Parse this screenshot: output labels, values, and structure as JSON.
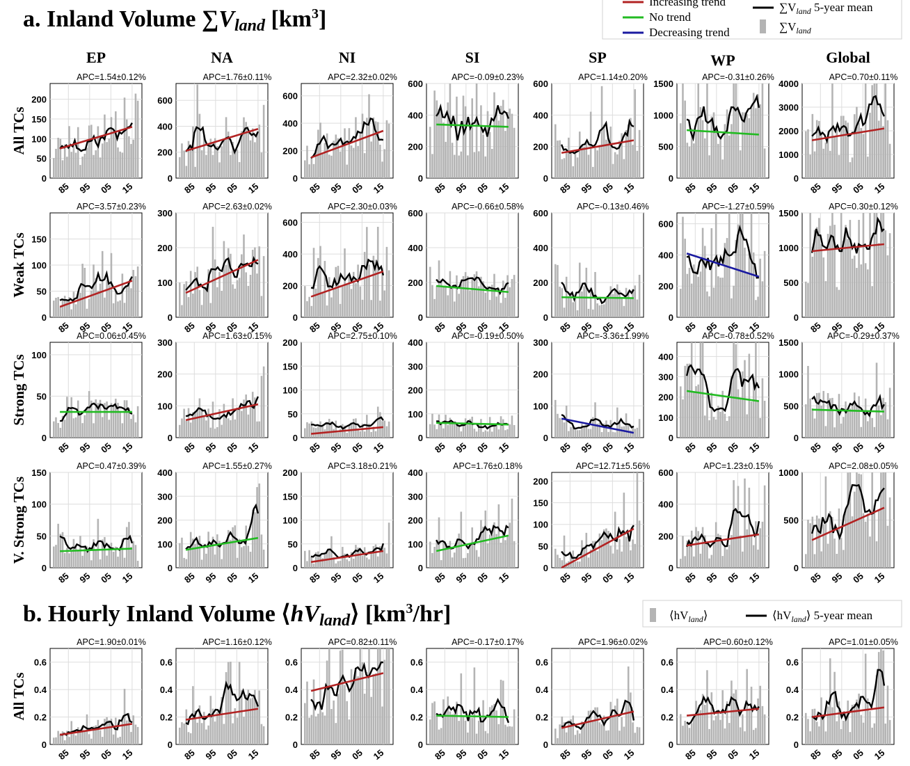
{
  "section_a": {
    "title_prefix": "a. Inland Volume ",
    "title_sum": "∑",
    "title_var": "V",
    "title_sub": "land",
    "title_unit": " [km",
    "title_unit_sup": "3",
    "title_unit_end": "]"
  },
  "section_b": {
    "title_prefix": "b. Hourly Inland Volume ⟨",
    "title_var": "hV",
    "title_sub": "land",
    "title_mid": "⟩ [km",
    "title_unit_sup": "3",
    "title_unit_end": "/hr]"
  },
  "legend_a": {
    "items": [
      {
        "label": "Increasing trend",
        "kind": "line",
        "color": "#b22222"
      },
      {
        "label": "No trend",
        "kind": "line",
        "color": "#22bb22"
      },
      {
        "label": "Decreasing trend",
        "kind": "line",
        "color": "#1a1aa0"
      },
      {
        "label": "∑V",
        "sub": "land",
        "suffix": " 5-year mean",
        "kind": "line",
        "color": "#000000"
      },
      {
        "label": "∑V",
        "sub": "land",
        "suffix": "",
        "kind": "bar",
        "color": "#b4b4b4"
      }
    ]
  },
  "legend_b": {
    "items": [
      {
        "label": "⟨hV",
        "sub": "land",
        "suffix": "⟩",
        "kind": "bar",
        "color": "#b4b4b4"
      },
      {
        "label": "⟨hV",
        "sub": "land",
        "suffix": "⟩ 5-year mean",
        "kind": "line",
        "color": "#000000"
      }
    ]
  },
  "columns": [
    "EP",
    "NA",
    "NI",
    "SI",
    "SP",
    "WP",
    "Global"
  ],
  "rows_a": [
    "All TCs",
    "Weak TCs",
    "Strong TCs",
    "V. Strong TCs"
  ],
  "rows_b": [
    "All TCs"
  ],
  "x_ticks": [
    "85",
    "95",
    "05",
    "15"
  ],
  "colors": {
    "bar": "#b4b4b4",
    "mean": "#000000",
    "increasing": "#b22222",
    "none": "#22bb22",
    "decreasing": "#1a1aa0",
    "grid": "#dddddd"
  },
  "chart_data": [
    {
      "section": "a",
      "row": "All TCs",
      "region": "EP",
      "type": "bar",
      "apc": "APC=1.54±0.12%",
      "ylim": [
        0,
        240
      ],
      "yticks": [
        0,
        50,
        100,
        150,
        200
      ],
      "trend": "increasing",
      "trend_line": [
        75,
        130
      ]
    },
    {
      "section": "a",
      "row": "All TCs",
      "region": "NA",
      "type": "bar",
      "apc": "APC=1.76±0.11%",
      "ylim": [
        0,
        730
      ],
      "yticks": [
        0,
        200,
        400,
        600
      ],
      "trend": "increasing",
      "trend_line": [
        210,
        380
      ]
    },
    {
      "section": "a",
      "row": "All TCs",
      "region": "NI",
      "type": "bar",
      "apc": "APC=2.32±0.02%",
      "ylim": [
        0,
        690
      ],
      "yticks": [
        0,
        200,
        400,
        600
      ],
      "trend": "increasing",
      "trend_line": [
        150,
        345
      ]
    },
    {
      "section": "a",
      "row": "All TCs",
      "region": "SI",
      "type": "bar",
      "apc": "APC=-0.09±0.23%",
      "ylim": [
        0,
        600
      ],
      "yticks": [
        0,
        200,
        400,
        600
      ],
      "trend": "none",
      "trend_line": [
        340,
        325
      ]
    },
    {
      "section": "a",
      "row": "All TCs",
      "region": "SP",
      "type": "bar",
      "apc": "APC=1.14±0.20%",
      "ylim": [
        0,
        600
      ],
      "yticks": [
        0,
        200,
        400,
        600
      ],
      "trend": "increasing",
      "trend_line": [
        160,
        240
      ]
    },
    {
      "section": "a",
      "row": "All TCs",
      "region": "WP",
      "type": "bar",
      "apc": "APC=-0.31±0.26%",
      "ylim": [
        0,
        1500
      ],
      "yticks": [
        0,
        500,
        1000,
        1500
      ],
      "trend": "none",
      "trend_line": [
        760,
        690
      ]
    },
    {
      "section": "a",
      "row": "All TCs",
      "region": "Global",
      "type": "bar",
      "apc": "APC=0.70±0.11%",
      "ylim": [
        0,
        4000
      ],
      "yticks": [
        0,
        1000,
        2000,
        3000,
        4000
      ],
      "trend": "increasing",
      "trend_line": [
        1600,
        2100
      ]
    },
    {
      "section": "a",
      "row": "Weak TCs",
      "region": "EP",
      "type": "bar",
      "apc": "APC=3.57±0.23%",
      "ylim": [
        0,
        200
      ],
      "yticks": [
        0,
        50,
        100,
        150
      ],
      "trend": "increasing",
      "trend_line": [
        20,
        70
      ]
    },
    {
      "section": "a",
      "row": "Weak TCs",
      "region": "NA",
      "type": "bar",
      "apc": "APC=2.63±0.02%",
      "ylim": [
        0,
        300
      ],
      "yticks": [
        0,
        100,
        200,
        300
      ],
      "trend": "increasing",
      "trend_line": [
        70,
        165
      ]
    },
    {
      "section": "a",
      "row": "Weak TCs",
      "region": "NI",
      "type": "bar",
      "apc": "APC=2.30±0.03%",
      "ylim": [
        0,
        660
      ],
      "yticks": [
        0,
        200,
        400,
        600
      ],
      "trend": "increasing",
      "trend_line": [
        130,
        290
      ]
    },
    {
      "section": "a",
      "row": "Weak TCs",
      "region": "SI",
      "type": "bar",
      "apc": "APC=-0.66±0.58%",
      "ylim": [
        0,
        600
      ],
      "yticks": [
        0,
        200,
        400,
        600
      ],
      "trend": "none",
      "trend_line": [
        180,
        145
      ]
    },
    {
      "section": "a",
      "row": "Weak TCs",
      "region": "SP",
      "type": "bar",
      "apc": "APC=-0.13±0.46%",
      "ylim": [
        0,
        600
      ],
      "yticks": [
        0,
        200,
        400,
        600
      ],
      "trend": "none",
      "trend_line": [
        115,
        110
      ]
    },
    {
      "section": "a",
      "row": "Weak TCs",
      "region": "WP",
      "type": "bar",
      "apc": "APC=-1.27±0.59%",
      "ylim": [
        0,
        670
      ],
      "yticks": [
        0,
        200,
        400,
        600
      ],
      "trend": "decreasing",
      "trend_line": [
        410,
        260
      ]
    },
    {
      "section": "a",
      "row": "Weak TCs",
      "region": "Global",
      "type": "bar",
      "apc": "APC=0.30±0.12%",
      "ylim": [
        0,
        1500
      ],
      "yticks": [
        0,
        500,
        1000,
        1500
      ],
      "trend": "increasing",
      "trend_line": [
        950,
        1050
      ]
    },
    {
      "section": "a",
      "row": "Strong TCs",
      "region": "EP",
      "type": "bar",
      "apc": "APC=0.06±0.45%",
      "ylim": [
        0,
        115
      ],
      "yticks": [
        0,
        50,
        100
      ],
      "trend": "none",
      "trend_line": [
        31,
        31
      ]
    },
    {
      "section": "a",
      "row": "Strong TCs",
      "region": "NA",
      "type": "bar",
      "apc": "APC=1.63±0.15%",
      "ylim": [
        0,
        300
      ],
      "yticks": [
        0,
        100,
        200,
        300
      ],
      "trend": "increasing",
      "trend_line": [
        55,
        105
      ]
    },
    {
      "section": "a",
      "row": "Strong TCs",
      "region": "NI",
      "type": "bar",
      "apc": "APC=2.75±0.10%",
      "ylim": [
        0,
        200
      ],
      "yticks": [
        0,
        50,
        100,
        150,
        200
      ],
      "trend": "increasing",
      "trend_line": [
        8,
        22
      ]
    },
    {
      "section": "a",
      "row": "Strong TCs",
      "region": "SI",
      "type": "bar",
      "apc": "APC=-0.19±0.50%",
      "ylim": [
        0,
        400
      ],
      "yticks": [
        0,
        100,
        200,
        300,
        400
      ],
      "trend": "none",
      "trend_line": [
        62,
        55
      ]
    },
    {
      "section": "a",
      "row": "Strong TCs",
      "region": "SP",
      "type": "bar",
      "apc": "APC=-3.36±1.99%",
      "ylim": [
        0,
        300
      ],
      "yticks": [
        0,
        100,
        200,
        300
      ],
      "trend": "decreasing",
      "trend_line": [
        60,
        15
      ]
    },
    {
      "section": "a",
      "row": "Strong TCs",
      "region": "WP",
      "type": "bar",
      "apc": "APC=-0.78±0.52%",
      "ylim": [
        0,
        470
      ],
      "yticks": [
        0,
        100,
        200,
        300,
        400
      ],
      "trend": "none",
      "trend_line": [
        230,
        180
      ]
    },
    {
      "section": "a",
      "row": "Strong TCs",
      "region": "Global",
      "type": "bar",
      "apc": "APC=-0.29±0.37%",
      "ylim": [
        0,
        1500
      ],
      "yticks": [
        0,
        500,
        1000,
        1500
      ],
      "trend": "none",
      "trend_line": [
        440,
        410
      ]
    },
    {
      "section": "a",
      "row": "V. Strong TCs",
      "region": "EP",
      "type": "bar",
      "apc": "APC=0.47±0.39%",
      "ylim": [
        0,
        150
      ],
      "yticks": [
        0,
        50,
        100,
        150
      ],
      "trend": "none",
      "trend_line": [
        26,
        30
      ]
    },
    {
      "section": "a",
      "row": "V. Strong TCs",
      "region": "NA",
      "type": "bar",
      "apc": "APC=1.55±0.27%",
      "ylim": [
        0,
        400
      ],
      "yticks": [
        0,
        100,
        200,
        300,
        400
      ],
      "trend": "none",
      "trend_line": [
        75,
        125
      ]
    },
    {
      "section": "a",
      "row": "V. Strong TCs",
      "region": "NI",
      "type": "bar",
      "apc": "APC=3.18±0.21%",
      "ylim": [
        0,
        200
      ],
      "yticks": [
        0,
        50,
        100,
        150,
        200
      ],
      "trend": "increasing",
      "trend_line": [
        12,
        35
      ]
    },
    {
      "section": "a",
      "row": "V. Strong TCs",
      "region": "SI",
      "type": "bar",
      "apc": "APC=1.76±0.18%",
      "ylim": [
        0,
        400
      ],
      "yticks": [
        0,
        100,
        200,
        300,
        400
      ],
      "trend": "none",
      "trend_line": [
        70,
        135
      ]
    },
    {
      "section": "a",
      "row": "V. Strong TCs",
      "region": "SP",
      "type": "bar",
      "apc": "APC=12.71±5.56%",
      "ylim": [
        0,
        220
      ],
      "yticks": [
        0,
        50,
        100,
        150,
        200
      ],
      "trend": "increasing",
      "trend_line": [
        0,
        90
      ]
    },
    {
      "section": "a",
      "row": "V. Strong TCs",
      "region": "WP",
      "type": "bar",
      "apc": "APC=1.23±0.15%",
      "ylim": [
        0,
        600
      ],
      "yticks": [
        0,
        200,
        400,
        600
      ],
      "trend": "increasing",
      "trend_line": [
        140,
        210
      ]
    },
    {
      "section": "a",
      "row": "V. Strong TCs",
      "region": "Global",
      "type": "bar",
      "apc": "APC=2.08±0.05%",
      "ylim": [
        0,
        1000
      ],
      "yticks": [
        0,
        500,
        1000
      ],
      "trend": "increasing",
      "trend_line": [
        290,
        630
      ]
    },
    {
      "section": "b",
      "row": "All TCs",
      "region": "EP",
      "type": "bar",
      "apc": "APC=1.90±0.01%",
      "ylim": [
        0,
        0.7
      ],
      "yticks": [
        0,
        0.2,
        0.4,
        0.6
      ],
      "trend": "increasing",
      "trend_line": [
        0.07,
        0.15
      ]
    },
    {
      "section": "b",
      "row": "All TCs",
      "region": "NA",
      "type": "bar",
      "apc": "APC=1.16±0.12%",
      "ylim": [
        0,
        0.7
      ],
      "yticks": [
        0,
        0.2,
        0.4,
        0.6
      ],
      "trend": "increasing",
      "trend_line": [
        0.18,
        0.26
      ]
    },
    {
      "section": "b",
      "row": "All TCs",
      "region": "NI",
      "type": "bar",
      "apc": "APC=0.82±0.11%",
      "ylim": [
        0,
        0.7
      ],
      "yticks": [
        0,
        0.2,
        0.4,
        0.6
      ],
      "trend": "increasing",
      "trend_line": [
        0.39,
        0.52
      ]
    },
    {
      "section": "b",
      "row": "All TCs",
      "region": "SI",
      "type": "bar",
      "apc": "APC=-0.17±0.17%",
      "ylim": [
        0,
        0.7
      ],
      "yticks": [
        0,
        0.2,
        0.4,
        0.6
      ],
      "trend": "none",
      "trend_line": [
        0.21,
        0.2
      ]
    },
    {
      "section": "b",
      "row": "All TCs",
      "region": "SP",
      "type": "bar",
      "apc": "APC=1.96±0.02%",
      "ylim": [
        0,
        0.7
      ],
      "yticks": [
        0,
        0.2,
        0.4,
        0.6
      ],
      "trend": "increasing",
      "trend_line": [
        0.12,
        0.24
      ]
    },
    {
      "section": "b",
      "row": "All TCs",
      "region": "WP",
      "type": "bar",
      "apc": "APC=0.60±0.12%",
      "ylim": [
        0,
        0.7
      ],
      "yticks": [
        0,
        0.2,
        0.4,
        0.6
      ],
      "trend": "increasing",
      "trend_line": [
        0.21,
        0.26
      ]
    },
    {
      "section": "b",
      "row": "All TCs",
      "region": "Global",
      "type": "bar",
      "apc": "APC=1.01±0.05%",
      "ylim": [
        0,
        0.7
      ],
      "yticks": [
        0,
        0.2,
        0.4,
        0.6
      ],
      "trend": "increasing",
      "trend_line": [
        0.2,
        0.27
      ]
    }
  ]
}
